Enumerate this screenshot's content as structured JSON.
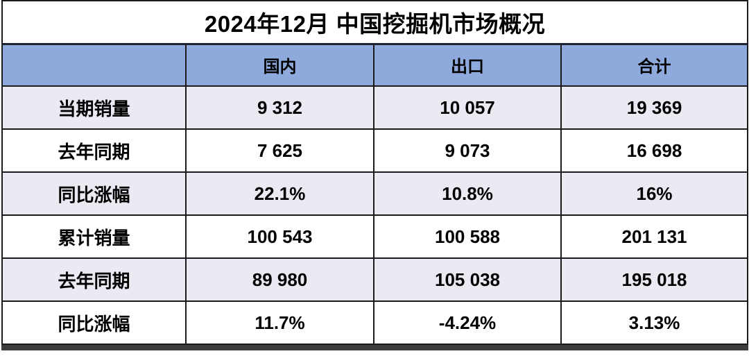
{
  "title": "2024年12月 中国挖掘机市场概况",
  "colors": {
    "header_bg": "#8EA9DB",
    "row_alt_bg": "#E9EAF2",
    "row_bg": "#FFFFFF",
    "border": "#1A1A1A",
    "bottom_shadow": "#3C3C3C",
    "text": "#000000"
  },
  "chart_data": {
    "type": "table",
    "title": "2024年12月 中国挖掘机市场概况",
    "columns": [
      "",
      "国内",
      "出口",
      "合计"
    ],
    "rows": [
      {
        "label": "当期销量",
        "values": [
          "9 312",
          "10 057",
          "19 369"
        ]
      },
      {
        "label": "去年同期",
        "values": [
          "7 625",
          "9 073",
          "16 698"
        ]
      },
      {
        "label": "同比涨幅",
        "values": [
          "22.1%",
          "10.8%",
          "16%"
        ]
      },
      {
        "label": "累计销量",
        "values": [
          "100 543",
          "100 588",
          "201 131"
        ]
      },
      {
        "label": "去年同期",
        "values": [
          "89 980",
          "105 038",
          "195 018"
        ]
      },
      {
        "label": "同比涨幅",
        "values": [
          "11.7%",
          "-4.24%",
          "3.13%"
        ]
      }
    ]
  }
}
